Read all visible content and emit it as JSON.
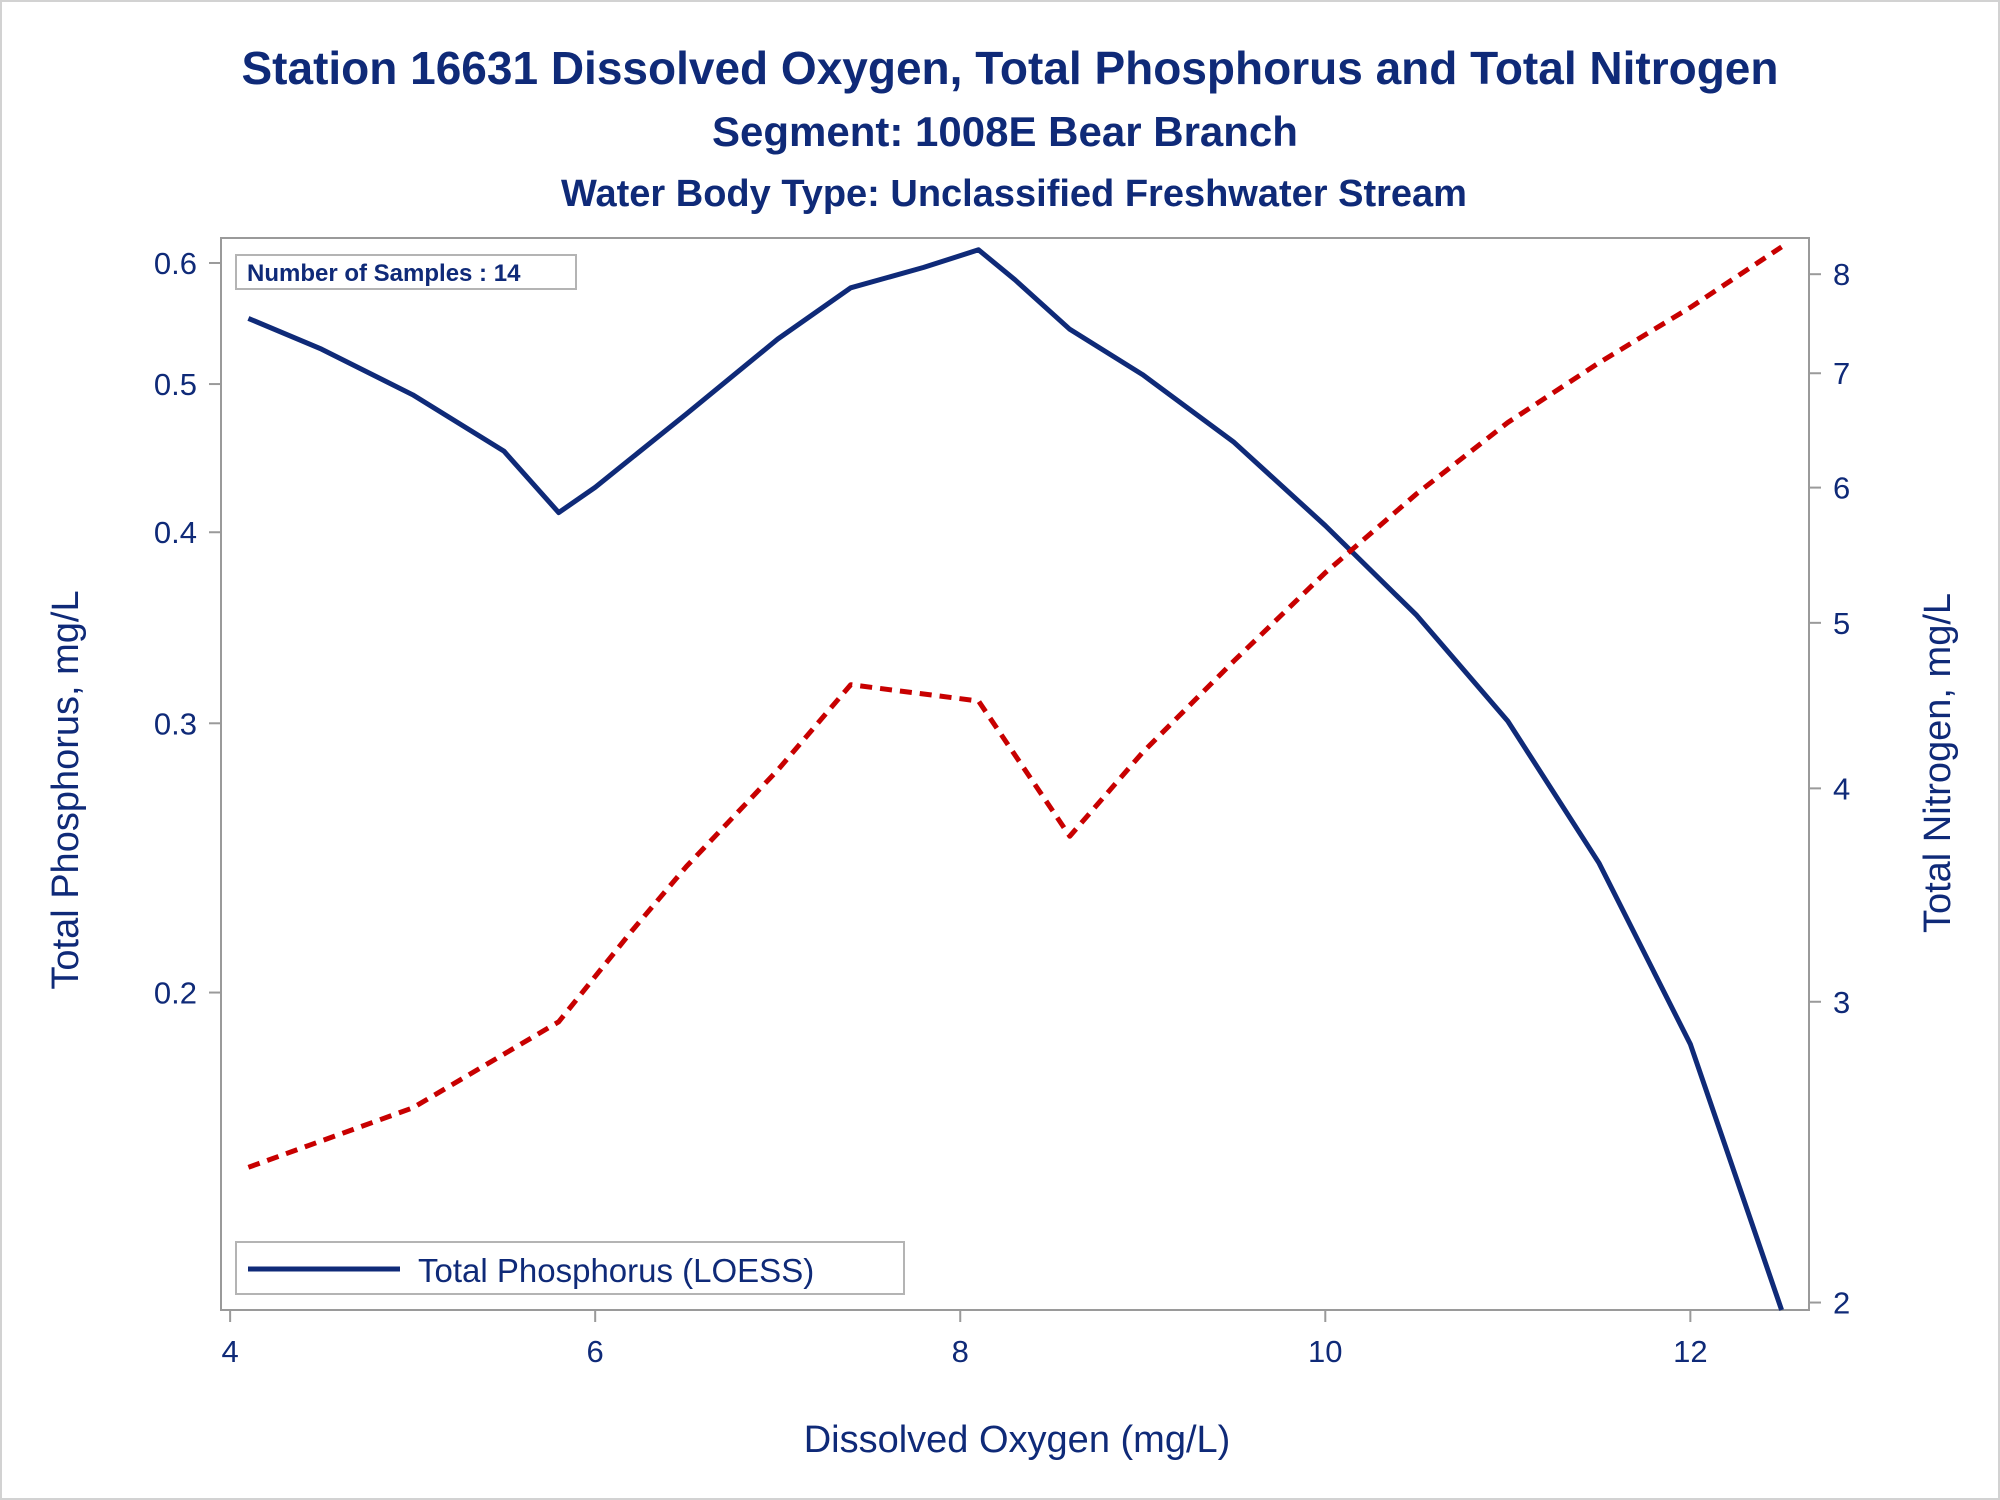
{
  "title": "Station 16631  Dissolved Oxygen, Total Phosphorus and Total Nitrogen",
  "subtitle1": "Segment: 1008E  Bear Branch",
  "subtitle2": "Water Body Type: Unclassified Freshwater Stream",
  "inset": {
    "sample_count_label": "Number of Samples : 14"
  },
  "legend": {
    "entry_label": "Total Phosphorus (LOESS)"
  },
  "colors": {
    "text": "#0f2a78",
    "phosphorus_line": "#0f2a78",
    "nitrogen_line": "#c80000",
    "frame": "#9a9a9a"
  },
  "chart_data": {
    "type": "line",
    "xlabel": "Dissolved Oxygen (mg/L)",
    "ylabel": "Total Phosphorus, mg/L",
    "y2label": "Total Nitrogen, mg/L",
    "xlim": [
      3.95,
      12.65
    ],
    "ylim": [
      0.124,
      0.623
    ],
    "y2lim": [
      1.98,
      8.4
    ],
    "yscale": "log",
    "y2scale": "log",
    "x_ticks": [
      "4",
      "6",
      "8",
      "10",
      "12"
    ],
    "y_ticks": [
      "0.2",
      "0.3",
      "0.4",
      "0.5",
      "0.6"
    ],
    "y2_ticks": [
      "2",
      "3",
      "4",
      "5",
      "6",
      "7",
      "8"
    ],
    "grid": false,
    "legend_position": "bottom-left",
    "series": [
      {
        "name": "Total Phosphorus (LOESS)",
        "axis": "left",
        "style": "solid",
        "x": [
          4.1,
          4.5,
          5.0,
          5.5,
          5.8,
          6.0,
          6.5,
          7.0,
          7.4,
          7.8,
          8.1,
          8.3,
          8.6,
          9.0,
          9.5,
          10.0,
          10.5,
          11.0,
          11.5,
          12.0,
          12.5
        ],
        "y": [
          0.552,
          0.527,
          0.492,
          0.452,
          0.412,
          0.428,
          0.478,
          0.535,
          0.578,
          0.596,
          0.612,
          0.585,
          0.543,
          0.507,
          0.458,
          0.404,
          0.353,
          0.301,
          0.243,
          0.185,
          0.124
        ]
      },
      {
        "axis": "right",
        "style": "dashed",
        "x": [
          4.1,
          5.0,
          5.8,
          6.2,
          6.5,
          7.0,
          7.4,
          8.1,
          8.6,
          9.0,
          9.5,
          10.0,
          10.5,
          11.0,
          11.5,
          12.0,
          12.5
        ],
        "y": [
          2.4,
          2.6,
          2.92,
          3.3,
          3.6,
          4.1,
          4.6,
          4.5,
          3.75,
          4.2,
          4.75,
          5.35,
          5.95,
          6.55,
          7.1,
          7.65,
          8.3
        ]
      }
    ]
  }
}
